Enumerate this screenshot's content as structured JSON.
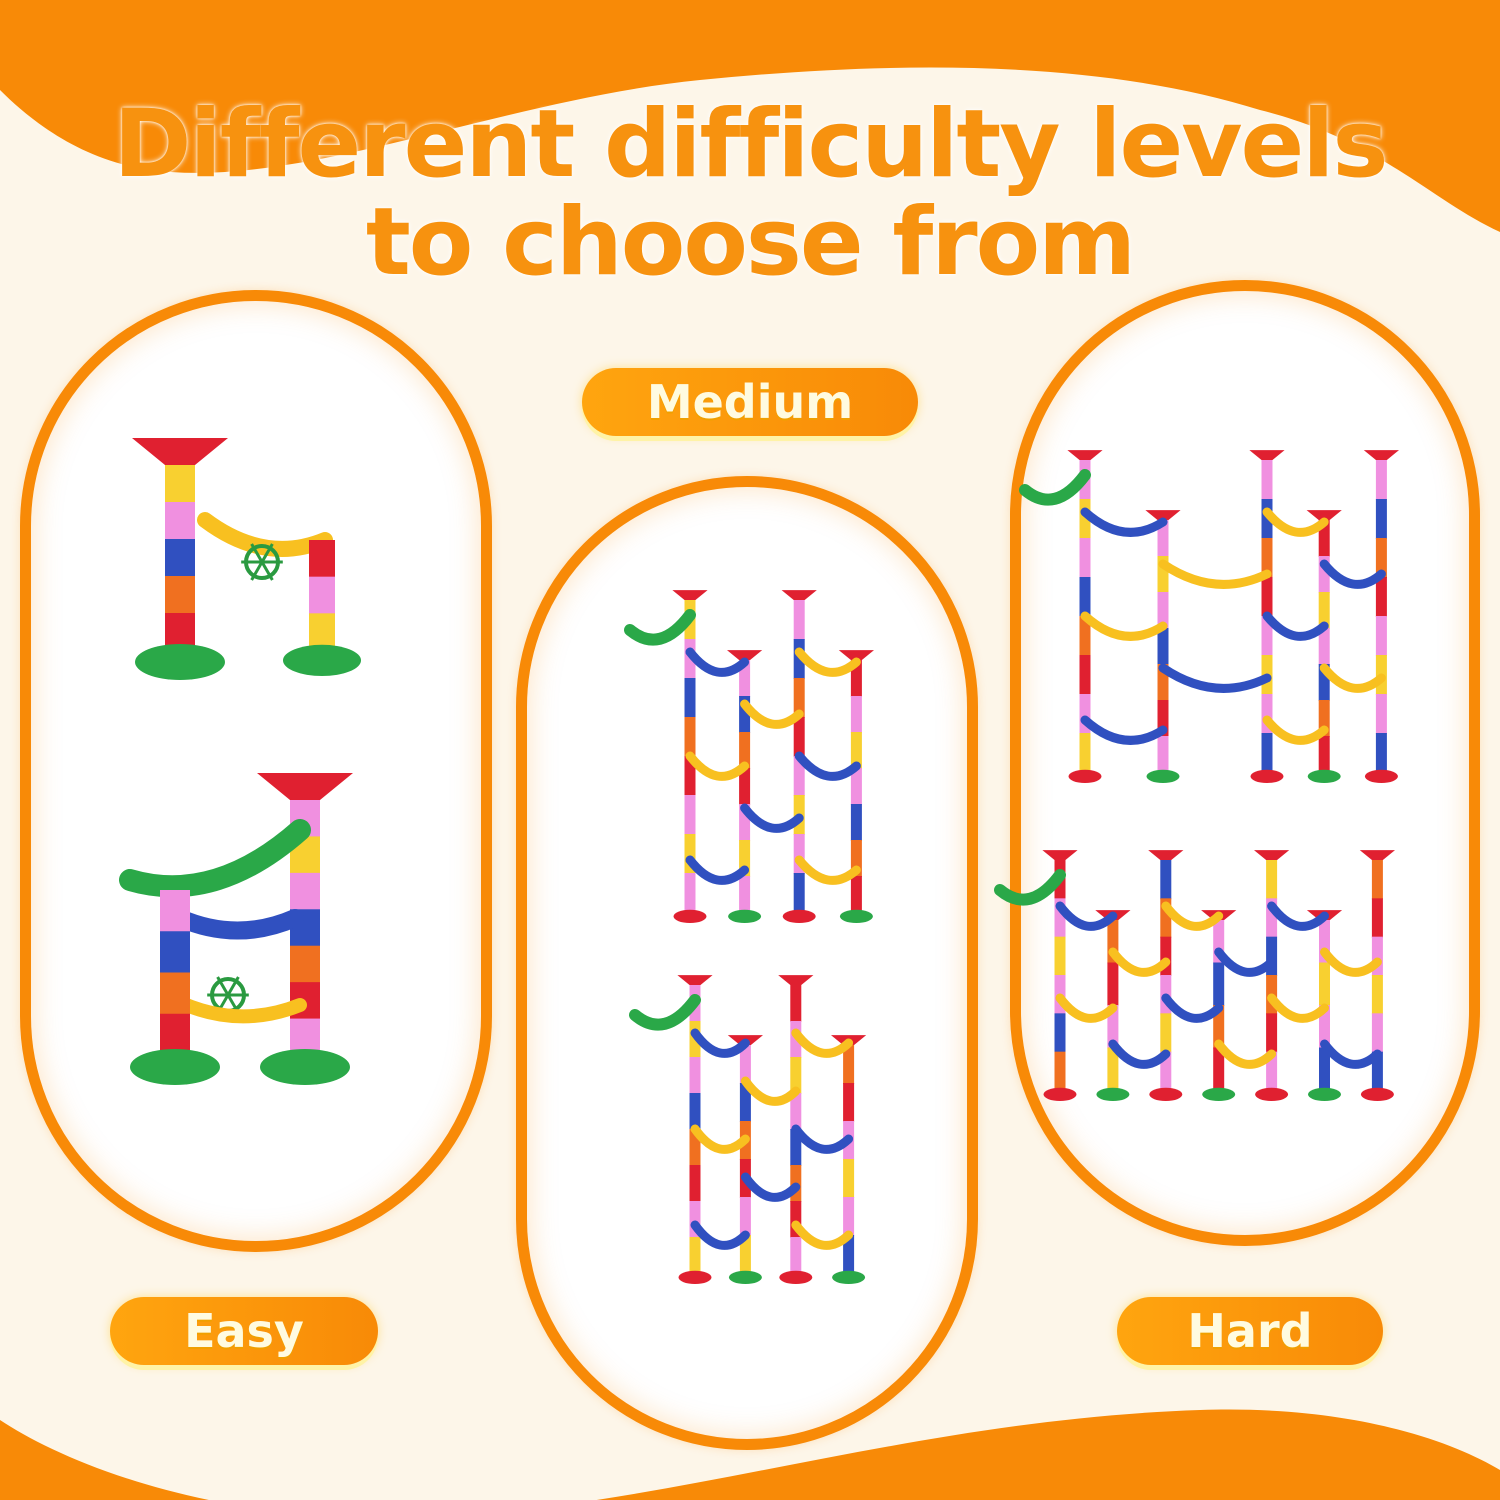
{
  "title": {
    "line1": "Different difficulty levels",
    "line2": "to choose from"
  },
  "levels": [
    {
      "label": "Easy",
      "models": 2
    },
    {
      "label": "Medium",
      "models": 2
    },
    {
      "label": "Hard",
      "models": 2
    }
  ],
  "colors": {
    "brand_orange": "#f88a07",
    "title_orange": "#f7920f",
    "background": "#fdf6e9",
    "label_text": "#fffbe0"
  }
}
